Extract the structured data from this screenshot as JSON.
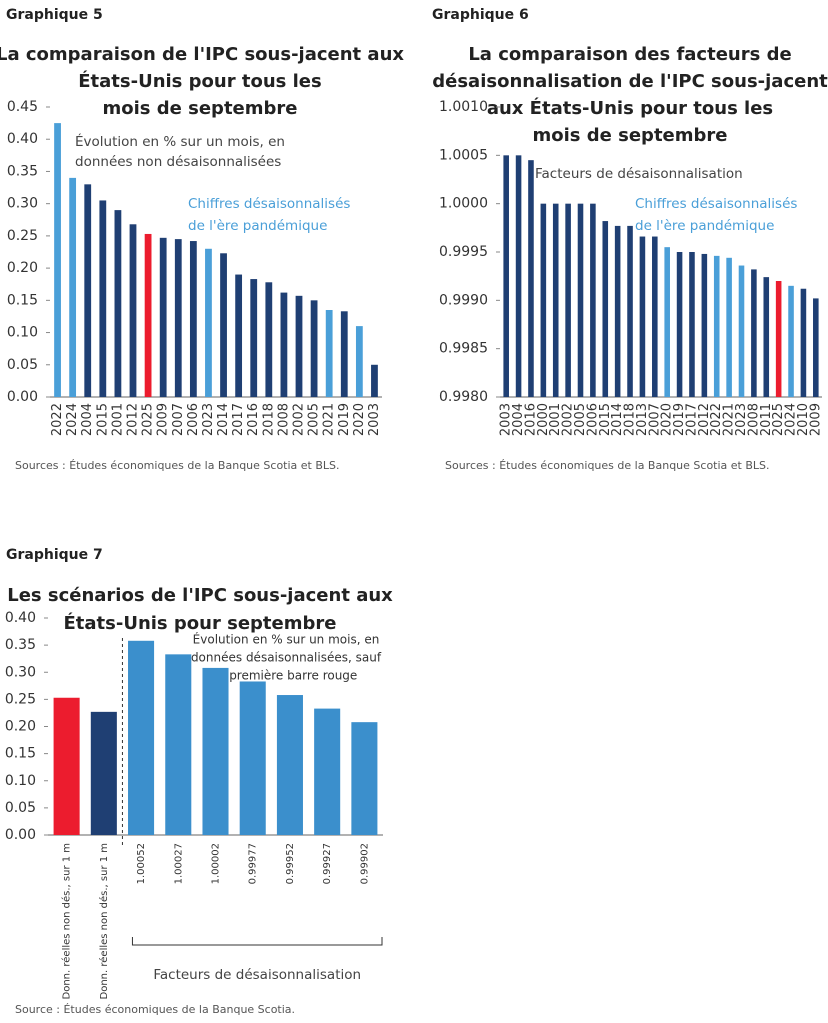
{
  "chart_data": [
    {
      "type": "bar",
      "label": "Graphique 5",
      "title": [
        "La comparaison de l'IPC sous-jacent aux",
        "États-Unis pour tous les",
        "mois de septembre"
      ],
      "annotations": [
        [
          "Évolution en % sur un mois, en",
          "données non désaisonnalisées"
        ],
        [
          "Chiffres désaisonnalisés",
          "de l'ère pandémique"
        ]
      ],
      "categories": [
        "2022",
        "2024",
        "2004",
        "2015",
        "2001",
        "2012",
        "2025",
        "2009",
        "2007",
        "2006",
        "2023",
        "2014",
        "2017",
        "2016",
        "2018",
        "2008",
        "2002",
        "2005",
        "2021",
        "2019",
        "2020",
        "2003"
      ],
      "values": [
        0.425,
        0.34,
        0.33,
        0.305,
        0.29,
        0.268,
        0.253,
        0.247,
        0.245,
        0.242,
        0.23,
        0.223,
        0.19,
        0.183,
        0.178,
        0.162,
        0.157,
        0.15,
        0.135,
        0.133,
        0.11,
        0.05
      ],
      "colors": [
        "#4a9fd8",
        "#4a9fd8",
        "#1f3f73",
        "#1f3f73",
        "#1f3f73",
        "#1f3f73",
        "#ec1c2e",
        "#1f3f73",
        "#1f3f73",
        "#1f3f73",
        "#4a9fd8",
        "#1f3f73",
        "#1f3f73",
        "#1f3f73",
        "#1f3f73",
        "#1f3f73",
        "#1f3f73",
        "#1f3f73",
        "#4a9fd8",
        "#1f3f73",
        "#4a9fd8",
        "#1f3f73"
      ],
      "ylim": [
        0,
        0.45
      ],
      "yticks": [
        {
          "value": 0,
          "label": "0.00"
        },
        0.05,
        {
          "value": 0.1,
          "label": "0.10"
        },
        0.15,
        {
          "value": 0.2,
          "label": "0.20"
        },
        0.25,
        {
          "value": 0.3,
          "label": "0.30"
        },
        0.35,
        {
          "value": 0.4,
          "label": "0.40"
        },
        0.45
      ],
      "source": "Sources : Études économiques de la Banque Scotia et BLS."
    },
    {
      "type": "bar",
      "label": "Graphique 6",
      "title": [
        "La comparaison des facteurs de",
        "désaisonnalisation de l'IPC sous-jacent",
        "aux États-Unis pour tous les",
        "mois de septembre"
      ],
      "annotations": [
        [
          "Facteurs de désaisonnalisation"
        ],
        [
          "Chiffres désaisonnalisés",
          "de l'ère pandémique"
        ]
      ],
      "categories": [
        "2003",
        "2004",
        "2016",
        "2000",
        "2001",
        "2002",
        "2005",
        "2006",
        "2015",
        "2014",
        "2018",
        "2013",
        "2007",
        "2020",
        "2019",
        "2017",
        "2012",
        "2022",
        "2021",
        "2023",
        "2008",
        "2011",
        "2025",
        "2024",
        "2010",
        "2009"
      ],
      "values": [
        1.0005,
        1.0005,
        1.00045,
        1.0,
        1.0,
        1.0,
        1.0,
        1.0,
        0.99982,
        0.99977,
        0.99977,
        0.99966,
        0.99966,
        0.99955,
        0.9995,
        0.9995,
        0.99948,
        0.99946,
        0.99944,
        0.99936,
        0.99932,
        0.99924,
        0.9992,
        0.99915,
        0.99912,
        0.99902
      ],
      "colors": [
        "#1f3f73",
        "#1f3f73",
        "#1f3f73",
        "#1f3f73",
        "#1f3f73",
        "#1f3f73",
        "#1f3f73",
        "#1f3f73",
        "#1f3f73",
        "#1f3f73",
        "#1f3f73",
        "#1f3f73",
        "#1f3f73",
        "#4a9fd8",
        "#1f3f73",
        "#1f3f73",
        "#1f3f73",
        "#4a9fd8",
        "#4a9fd8",
        "#4a9fd8",
        "#1f3f73",
        "#1f3f73",
        "#ec1c2e",
        "#4a9fd8",
        "#1f3f73",
        "#1f3f73"
      ],
      "ylim": [
        0.998,
        1.001
      ],
      "yticks": [
        {
          "value": 0.998,
          "label": "0.9980"
        },
        0.9985,
        {
          "value": 0.999,
          "label": "0.9990"
        },
        0.9995,
        {
          "value": 1.0,
          "label": "1.0000"
        },
        1.0005,
        {
          "value": 1.001,
          "label": "1.0010"
        }
      ],
      "source": "Sources : Études économiques de la Banque Scotia et BLS."
    },
    {
      "type": "bar",
      "label": "Graphique 7",
      "title": [
        "Les scénarios de l'IPC sous-jacent aux",
        "États-Unis pour septembre"
      ],
      "annotations": [
        [
          "Évolution en % sur un mois, en",
          "données désaisonnalisées, sauf",
          "la première barre rouge"
        ]
      ],
      "bracket_label": "Facteurs de désaisonnalisation",
      "categories": [
        "Donn. réelles non dés., sur 1 m",
        "Donn. réelles non dés., sur 1 m",
        "1.00052",
        "1.00027",
        "1.00002",
        "0.99977",
        "0.99952",
        "0.99927",
        "0.99902"
      ],
      "values": [
        0.253,
        0.227,
        0.358,
        0.333,
        0.308,
        0.283,
        0.258,
        0.233,
        0.208
      ],
      "colors": [
        "#ec1c2e",
        "#1f3f73",
        "#3b8fcc",
        "#3b8fcc",
        "#3b8fcc",
        "#3b8fcc",
        "#3b8fcc",
        "#3b8fcc",
        "#3b8fcc"
      ],
      "ylim": [
        0,
        0.4
      ],
      "yticks": [
        {
          "value": 0,
          "label": "0.00"
        },
        0.05,
        {
          "value": 0.1,
          "label": "0.10"
        },
        0.15,
        {
          "value": 0.2,
          "label": "0.20"
        },
        0.25,
        {
          "value": 0.3,
          "label": "0.30"
        },
        0.35,
        {
          "value": 0.4,
          "label": "0.40"
        }
      ],
      "source": "Source : Études économiques de la Banque Scotia."
    }
  ]
}
